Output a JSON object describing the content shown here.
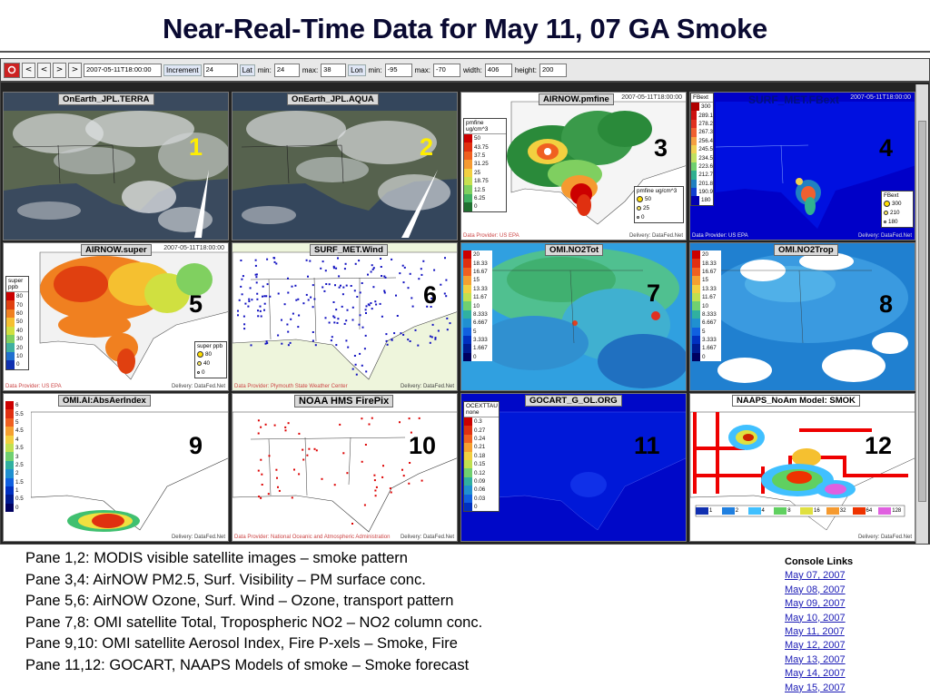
{
  "page": {
    "title": "Near-Real-Time Data for May 11, 07 GA Smoke"
  },
  "console": {
    "nav_buttons": [
      "<",
      "<",
      ">",
      ">"
    ],
    "datetime_value": "2007-05-11T18:00:00",
    "increment_label": "Increment",
    "increment_value": "24",
    "lat_label": "Lat",
    "lat_min_label": "min:",
    "lat_min_value": "24",
    "lat_max_label": "max:",
    "lat_max_value": "38",
    "lon_label": "Lon",
    "lon_min_label": "min:",
    "lon_min_value": "-95",
    "lon_max_label": "max:",
    "lon_max_value": "-70",
    "width_label": "width:",
    "width_value": "406",
    "height_label": "height:",
    "height_value": "200"
  },
  "panes": [
    {
      "num": "1",
      "title": "OnEarth_JPL.TERRA",
      "timestamp": "",
      "provider": "",
      "credit": ""
    },
    {
      "num": "2",
      "title": "OnEarth_JPL.AQUA",
      "timestamp": "",
      "provider": "",
      "credit": ""
    },
    {
      "num": "3",
      "title": "AIRNOW.pmfine",
      "timestamp": "2007-05-11T18:00:00",
      "provider": "Data Provider: US EPA",
      "credit": "Delivery: DataFed.Net"
    },
    {
      "num": "4",
      "title": "SURF_MET.FBext",
      "timestamp": "2007-05-11T18:00:00",
      "provider": "Data Provider: US EPA",
      "credit": "Delivery: DataFed.Net"
    },
    {
      "num": "5",
      "title": "AIRNOW.super",
      "timestamp": "2007-05-11T18:00:00",
      "provider": "Data Provider: US EPA",
      "credit": "Delivery: DataFed.Net"
    },
    {
      "num": "6",
      "title": "SURF_MET.Wind",
      "timestamp": "",
      "provider": "Data Provider: Plymouth State Weather Center",
      "credit": "Delivery: DataFed.Net"
    },
    {
      "num": "7",
      "title": "OMI.NO2Tot",
      "timestamp": "",
      "provider": "",
      "credit": ""
    },
    {
      "num": "8",
      "title": "OMI.NO2Trop",
      "timestamp": "",
      "provider": "",
      "credit": ""
    },
    {
      "num": "9",
      "title": "OMI.AI:AbsAerIndex",
      "timestamp": "",
      "provider": "",
      "credit": "Delivery: DataFed.Net"
    },
    {
      "num": "10",
      "title": "NOAA HMS FirePix",
      "timestamp": "",
      "provider": "Data Provider: National Oceanic and Atmospheric Administration",
      "credit": "Delivery: DataFed.Net"
    },
    {
      "num": "11",
      "title": "GOCART_G_OL.ORG",
      "timestamp": "",
      "provider": "",
      "credit": ""
    },
    {
      "num": "12",
      "title": "NAAPS_NoAm Model: SMOK",
      "timestamp": "",
      "provider": "",
      "credit": "Delivery: DataFed.Net"
    }
  ],
  "legends": {
    "pmfine": {
      "header": "pmfine ug/cm^3",
      "values": [
        "50",
        "43.75",
        "37.5",
        "31.25",
        "25",
        "18.75",
        "12.5",
        "6.25",
        "0"
      ],
      "colors": [
        "#cc0000",
        "#e03010",
        "#f06020",
        "#f59a30",
        "#f2d040",
        "#c8e050",
        "#7fd060",
        "#40b060",
        "#207030"
      ]
    },
    "pmfine_dots": {
      "header": "pmfine ug/cm^3",
      "values": [
        "50",
        "25",
        "0"
      ]
    },
    "fbext": {
      "header": "FBext",
      "values": [
        "300",
        "289.1",
        "278.2",
        "267.3",
        "256.4",
        "245.5",
        "234.5",
        "223.6",
        "212.7",
        "201.8",
        "190.9",
        "180"
      ],
      "colors": [
        "#b00000",
        "#cc1010",
        "#e03020",
        "#f06030",
        "#f5a040",
        "#f0d050",
        "#c0e060",
        "#70d070",
        "#30b090",
        "#2080c0",
        "#1040d0",
        "#0000b0"
      ]
    },
    "fbext_dots": {
      "header": "FBext",
      "values": [
        "300",
        "210",
        "180"
      ]
    },
    "super": {
      "header": "super ppb",
      "values": [
        "80",
        "70",
        "60",
        "50",
        "40",
        "30",
        "20",
        "10",
        "0"
      ],
      "colors": [
        "#cc0000",
        "#e04010",
        "#f08020",
        "#f5c030",
        "#d0e040",
        "#80d060",
        "#40b0a0",
        "#2070d0",
        "#1030b0"
      ]
    },
    "super_dots": {
      "header": "super ppb",
      "values": [
        "80",
        "40",
        "0"
      ]
    },
    "no2tot": {
      "values": [
        "20",
        "18.33",
        "16.67",
        "15",
        "13.33",
        "11.67",
        "10",
        "8.333",
        "6.667",
        "5",
        "3.333",
        "1.667",
        "0"
      ]
    },
    "no2trop": {
      "values": [
        "20",
        "18.33",
        "16.67",
        "15",
        "13.33",
        "11.67",
        "10",
        "8.333",
        "6.667",
        "5",
        "3.333",
        "1.667",
        "0"
      ]
    },
    "absaer": {
      "values": [
        "6",
        "5.5",
        "5",
        "4.5",
        "4",
        "3.5",
        "3",
        "2.5",
        "2",
        "1.5",
        "1",
        "0.5",
        "0"
      ]
    },
    "ocext": {
      "header": "OCEXTTAU none",
      "values": [
        "0.3",
        "0.27",
        "0.24",
        "0.21",
        "0.18",
        "0.15",
        "0.12",
        "0.09",
        "0.06",
        "0.03",
        "0"
      ]
    },
    "naaps": {
      "values": [
        "1",
        "2",
        "4",
        "8",
        "16",
        "32",
        "64",
        "128"
      ]
    }
  },
  "caption_lines": [
    "Pane 1,2: MODIS visible satellite images – smoke pattern",
    "Pane 3,4: AirNOW PM2.5, Surf. Visibility – PM surface conc.",
    "Pane 5,6: AirNOW Ozone, Surf. Wind – Ozone, transport pattern",
    "Pane 7,8: OMI satellite Total, Tropospheric NO2 – NO2 column conc.",
    "Pane 9,10: OMI satellite Aerosol Index, Fire P-xels – Smoke, Fire",
    "Pane 11,12: GOCART, NAAPS Models of smoke – Smoke forecast"
  ],
  "console_links": {
    "header": "Console Links",
    "items": [
      "May 07, 2007",
      "May 08, 2007",
      "May 09, 2007",
      "May 10, 2007",
      "May 11, 2007",
      "May 12, 2007",
      "May 13, 2007",
      "May 14, 2007",
      "May 15, 2007"
    ]
  },
  "colors": {
    "pane_number_red": "#ff0000",
    "pane_number_yellow": "#ffee00",
    "pane_number_black": "#000000",
    "link_blue": "#1a1ab5"
  }
}
